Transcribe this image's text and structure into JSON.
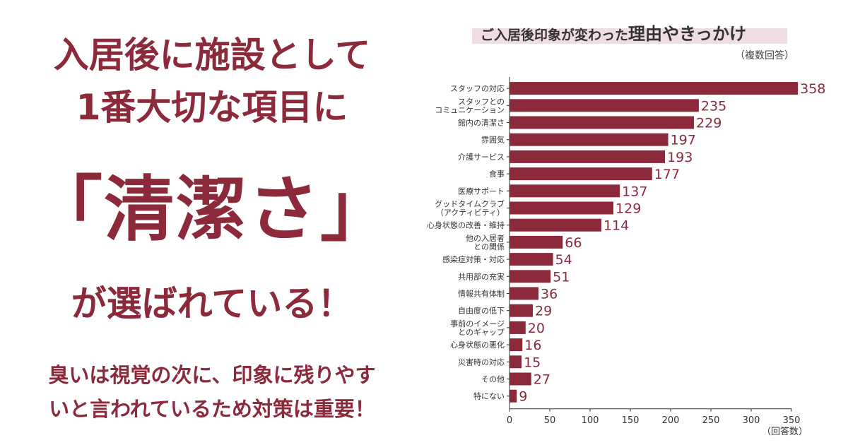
{
  "headline": {
    "line1": "入居後に施設として",
    "line2": "1番大切な項目に",
    "line3": "「清潔さ」",
    "line4": "が選ばれている！"
  },
  "subtext": {
    "line1": "臭いは視覚の次に、印象に残りやす",
    "line2": "いと言われているため対策は重要！"
  },
  "colors": {
    "accent": "#8c2a3b",
    "bar": "#8c2a3b",
    "title_band": "#f0dde2"
  },
  "chart_data": {
    "type": "bar",
    "orientation": "horizontal",
    "title_small": "ご入居後印象が変わった",
    "title_big": "理由やきっかけ",
    "note": "（複数回答）",
    "xlabel": "（回答数）",
    "xlim": [
      0,
      350
    ],
    "xticks": [
      0,
      50,
      100,
      150,
      200,
      250,
      300,
      350
    ],
    "categories": [
      [
        "スタッフの対応"
      ],
      [
        "スタッフとの",
        "コミュニケーション"
      ],
      [
        "館内の清潔さ"
      ],
      [
        "雰囲気"
      ],
      [
        "介護サービス"
      ],
      [
        "食事"
      ],
      [
        "医療サポート"
      ],
      [
        "グッドタイムクラブ",
        "（アクティビティ）"
      ],
      [
        "心身状態の改善・維持"
      ],
      [
        "他の入居者",
        "との関係"
      ],
      [
        "感染症対策・対応"
      ],
      [
        "共用部の充実"
      ],
      [
        "情報共有体制"
      ],
      [
        "自由度の低下"
      ],
      [
        "事前のイメージ",
        "とのギャップ"
      ],
      [
        "心身状態の悪化"
      ],
      [
        "災害時の対応"
      ],
      [
        "その他"
      ],
      [
        "特にない"
      ]
    ],
    "values": [
      358,
      235,
      229,
      197,
      193,
      177,
      137,
      129,
      114,
      66,
      54,
      51,
      36,
      29,
      20,
      16,
      15,
      27,
      9
    ]
  }
}
